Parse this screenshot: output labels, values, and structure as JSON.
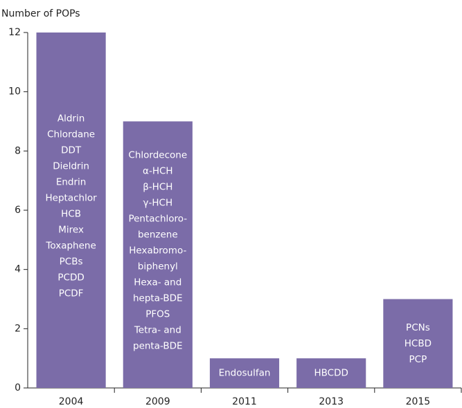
{
  "chart_data": {
    "type": "bar",
    "y_label": "Number of POPs",
    "categories": [
      "2004",
      "2009",
      "2011",
      "2013",
      "2015"
    ],
    "values": [
      12,
      9,
      1,
      1,
      3
    ],
    "bar_labels": [
      [
        "Aldrin",
        "Chlordane",
        "DDT",
        "Dieldrin",
        "Endrin",
        "Heptachlor",
        "HCB",
        "Mirex",
        "Toxaphene",
        "PCBs",
        "PCDD",
        "PCDF"
      ],
      [
        "Chlordecone",
        "α-HCH",
        "β-HCH",
        "γ-HCH",
        "Pentachloro-",
        "benzene",
        "Hexabromo-",
        "biphenyl",
        "Hexa- and",
        "hepta-BDE",
        "PFOS",
        "Tetra- and",
        "penta-BDE"
      ],
      [
        "Endosulfan"
      ],
      [
        "HBCDD"
      ],
      [
        "PCNs",
        "HCBD",
        "PCP"
      ]
    ],
    "color": "#7b6ca8",
    "ylim": [
      0,
      12
    ],
    "yticks": [
      0,
      2,
      4,
      6,
      8,
      10,
      12
    ]
  }
}
